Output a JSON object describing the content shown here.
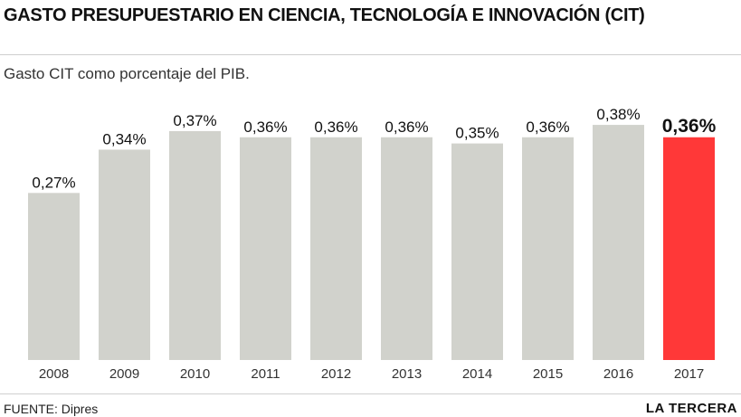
{
  "header": {
    "title": "GASTO PRESUPUESTARIO EN CIENCIA, TECNOLOGÍA E INNOVACIÓN (CIT)",
    "subtitle": "Gasto CIT como porcentaje del PIB."
  },
  "footer": {
    "source": "FUENTE: Dipres",
    "brand": "LA TERCERA"
  },
  "colors": {
    "bar": "#d1d2cc",
    "highlight": "#ff3838",
    "text": "#111111"
  },
  "chart_data": {
    "type": "bar",
    "title": "GASTO PRESUPUESTARIO EN CIENCIA, TECNOLOGÍA E INNOVACIÓN (CIT)",
    "subtitle": "Gasto CIT como porcentaje del PIB.",
    "categories": [
      "2008",
      "2009",
      "2010",
      "2011",
      "2012",
      "2013",
      "2014",
      "2015",
      "2016",
      "2017"
    ],
    "values": [
      0.27,
      0.34,
      0.37,
      0.36,
      0.36,
      0.36,
      0.35,
      0.36,
      0.38,
      0.36
    ],
    "labels": [
      "0,27%",
      "0,34%",
      "0,37%",
      "0,36%",
      "0,36%",
      "0,36%",
      "0,35%",
      "0,36%",
      "0,38%",
      "0,36%"
    ],
    "highlight_index": 9,
    "ylim": [
      0,
      0.4
    ],
    "grid": false,
    "legend": "none"
  }
}
